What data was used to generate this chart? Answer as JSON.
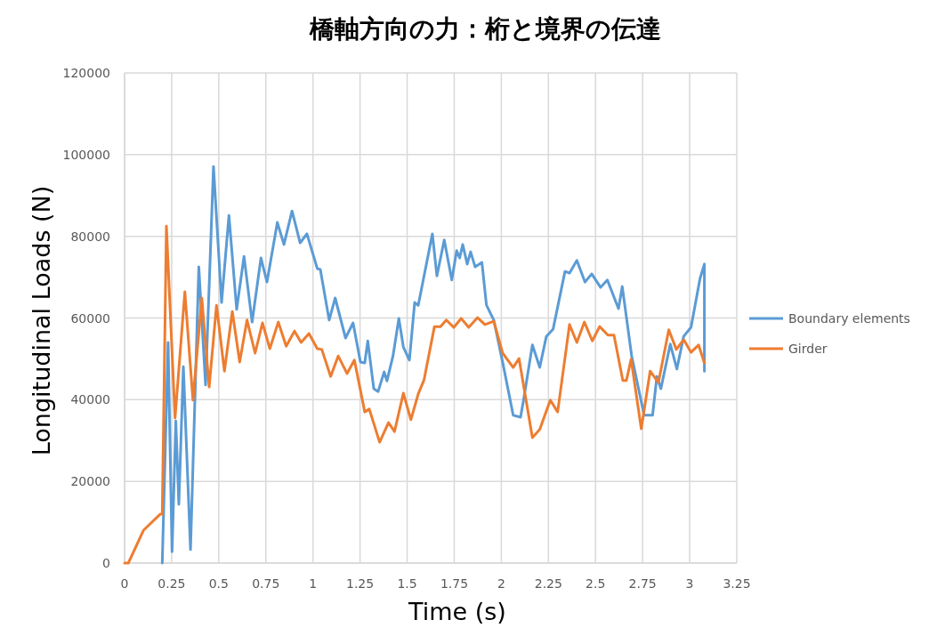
{
  "chart_data": {
    "type": "line",
    "title": "橋軸方向の力：桁と境界の伝達",
    "xlabel": "Time (s)",
    "ylabel": "Longitudinal Loads (N)",
    "xlim": [
      0,
      3.25
    ],
    "xticks": [
      0,
      0.25,
      0.5,
      0.75,
      1,
      1.25,
      1.5,
      1.75,
      2,
      2.25,
      2.5,
      2.75,
      3,
      3.25
    ],
    "ylim": [
      0,
      120000
    ],
    "yticks": [
      0,
      20000,
      40000,
      60000,
      80000,
      100000,
      120000
    ],
    "grid": true,
    "legend": "right",
    "marker": "none",
    "line_style": "solid",
    "series": [
      {
        "name": "Boundary elements",
        "color": "#5b9bd5",
        "x": [
          0.2,
          0.205,
          0.231,
          0.252,
          0.272,
          0.288,
          0.312,
          0.35,
          0.394,
          0.43,
          0.472,
          0.515,
          0.554,
          0.595,
          0.634,
          0.677,
          0.724,
          0.756,
          0.811,
          0.846,
          0.889,
          0.932,
          0.968,
          1.023,
          1.039,
          1.086,
          1.118,
          1.173,
          1.213,
          1.252,
          1.275,
          1.291,
          1.323,
          1.346,
          1.378,
          1.393,
          1.425,
          1.456,
          1.48,
          1.512,
          1.54,
          1.559,
          1.634,
          1.658,
          1.697,
          1.737,
          1.763,
          1.779,
          1.795,
          1.819,
          1.837,
          1.861,
          1.897,
          1.921,
          1.96,
          2.007,
          2.063,
          2.102,
          2.118,
          2.165,
          2.204,
          2.239,
          2.275,
          2.338,
          2.362,
          2.401,
          2.444,
          2.48,
          2.527,
          2.563,
          2.622,
          2.642,
          2.692,
          2.758,
          2.803,
          2.826,
          2.847,
          2.897,
          2.932,
          2.968,
          3.007,
          3.055,
          3.078,
          3.078
        ],
        "values": [
          0,
          8700,
          54000,
          2800,
          34800,
          14400,
          48100,
          3300,
          72500,
          43600,
          97100,
          63800,
          85100,
          62100,
          75100,
          59000,
          74700,
          68800,
          83400,
          78000,
          86200,
          78400,
          80600,
          72100,
          71900,
          59500,
          64900,
          55100,
          58800,
          49200,
          49000,
          54400,
          42700,
          42000,
          46800,
          44600,
          50700,
          59900,
          52900,
          49700,
          63800,
          63100,
          80600,
          70300,
          79100,
          69300,
          76500,
          74700,
          78000,
          73200,
          76200,
          72500,
          73600,
          63200,
          59500,
          49200,
          36200,
          35700,
          39900,
          53400,
          47900,
          55500,
          57300,
          71400,
          71000,
          74100,
          68800,
          70800,
          67500,
          69300,
          62300,
          67700,
          50700,
          36200,
          36200,
          45700,
          42700,
          53600,
          47500,
          55500,
          57700,
          69700,
          73200,
          47000
        ]
      },
      {
        "name": "Girder",
        "color": "#ed7d31",
        "x": [
          0,
          0.02,
          0.1,
          0.19,
          0.2,
          0.222,
          0.268,
          0.32,
          0.363,
          0.41,
          0.449,
          0.488,
          0.53,
          0.572,
          0.611,
          0.65,
          0.693,
          0.732,
          0.771,
          0.816,
          0.858,
          0.902,
          0.937,
          0.979,
          1.023,
          1.047,
          1.094,
          1.134,
          1.181,
          1.22,
          1.275,
          1.299,
          1.354,
          1.401,
          1.433,
          1.48,
          1.52,
          1.559,
          1.59,
          1.645,
          1.677,
          1.708,
          1.748,
          1.787,
          1.827,
          1.874,
          1.913,
          1.96,
          2.007,
          2.063,
          2.094,
          2.165,
          2.204,
          2.26,
          2.299,
          2.362,
          2.401,
          2.441,
          2.483,
          2.522,
          2.566,
          2.598,
          2.645,
          2.664,
          2.689,
          2.743,
          2.79,
          2.834,
          2.889,
          2.929,
          2.968,
          3.007,
          3.047,
          3.078
        ],
        "values": [
          0,
          0,
          8000,
          12000,
          12000,
          82500,
          35500,
          66400,
          39900,
          64900,
          43100,
          63100,
          47000,
          61600,
          49200,
          59500,
          51400,
          58800,
          52500,
          59000,
          53100,
          56800,
          54000,
          56200,
          52500,
          52300,
          45700,
          50700,
          46400,
          49700,
          37000,
          37700,
          29600,
          34400,
          32200,
          41600,
          35100,
          41400,
          44900,
          57900,
          57900,
          59500,
          57700,
          59900,
          57700,
          60100,
          58400,
          59200,
          51400,
          47900,
          50100,
          30700,
          32700,
          39900,
          37000,
          58400,
          54000,
          59000,
          54400,
          57900,
          55800,
          55800,
          44700,
          44700,
          49900,
          32900,
          47000,
          44200,
          57100,
          52300,
          54700,
          51600,
          53400,
          49000
        ]
      }
    ]
  }
}
